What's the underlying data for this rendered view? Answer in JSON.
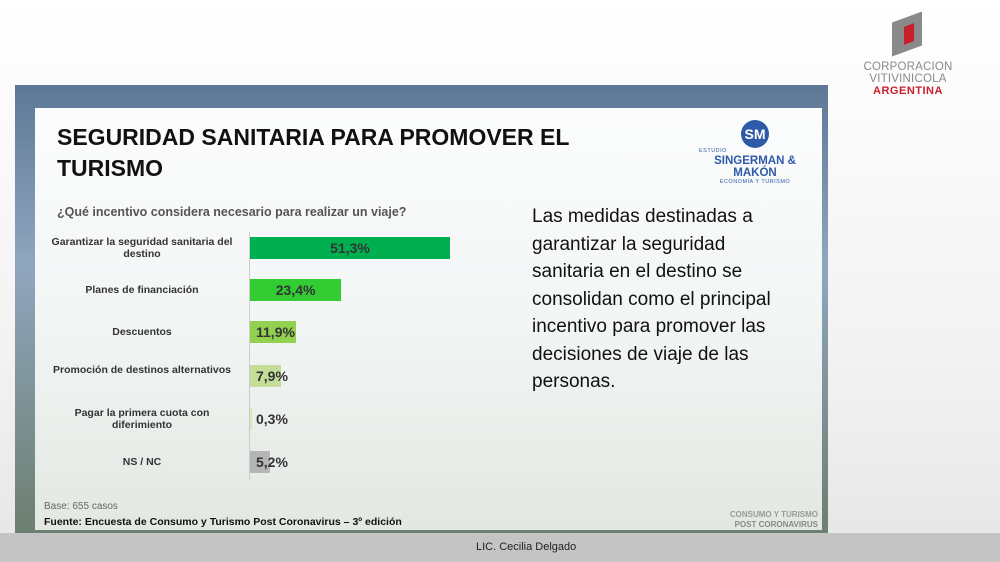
{
  "header_logo": {
    "line1": "CORPORACION VITIVINICOLA",
    "line2": "ARGENTINA"
  },
  "slide": {
    "title": "SEGURIDAD SANITARIA PARA PROMOVER EL TURISMO",
    "partner_logo": {
      "prefix": "ESTUDIO",
      "name": "SINGERMAN & MAKÓN",
      "subtitle": "ECONOMÍA Y TURISMO",
      "initials": "SM"
    },
    "question": "¿Qué incentivo considera necesario para realizar un viaje?",
    "summary": "Las medidas destinadas a garantizar la seguridad sanitaria en el destino se consolidan como el principal incentivo para promover las decisiones de viaje de las personas.",
    "base": "Base: 655 casos",
    "source": "Fuente: Encuesta de Consumo y Turismo Post Coronavirus – 3º edición",
    "brand_line1": "CONSUMO Y TURISMO",
    "brand_line2": "POST CORONAVIRUS"
  },
  "chart_data": {
    "type": "bar",
    "orientation": "horizontal",
    "title": "¿Qué incentivo considera necesario para realizar un viaje?",
    "categories": [
      "Garantizar la seguridad sanitaria del destino",
      "Planes de financiación",
      "Descuentos",
      "Promoción de destinos alternativos",
      "Pagar la primera cuota con diferimiento",
      "NS / NC"
    ],
    "values": [
      51.3,
      23.4,
      11.9,
      7.9,
      0.3,
      5.2
    ],
    "labels": [
      "51,3%",
      "23,4%",
      "11,9%",
      "7,9%",
      "0,3%",
      "5,2%"
    ],
    "colors": [
      "#00b050",
      "#33cc33",
      "#92d050",
      "#c4dd98",
      "#d8e8b8",
      "#b5b5b5"
    ],
    "unit": "%"
  },
  "footer": {
    "presenter": "LIC. Cecilia Delgado"
  }
}
